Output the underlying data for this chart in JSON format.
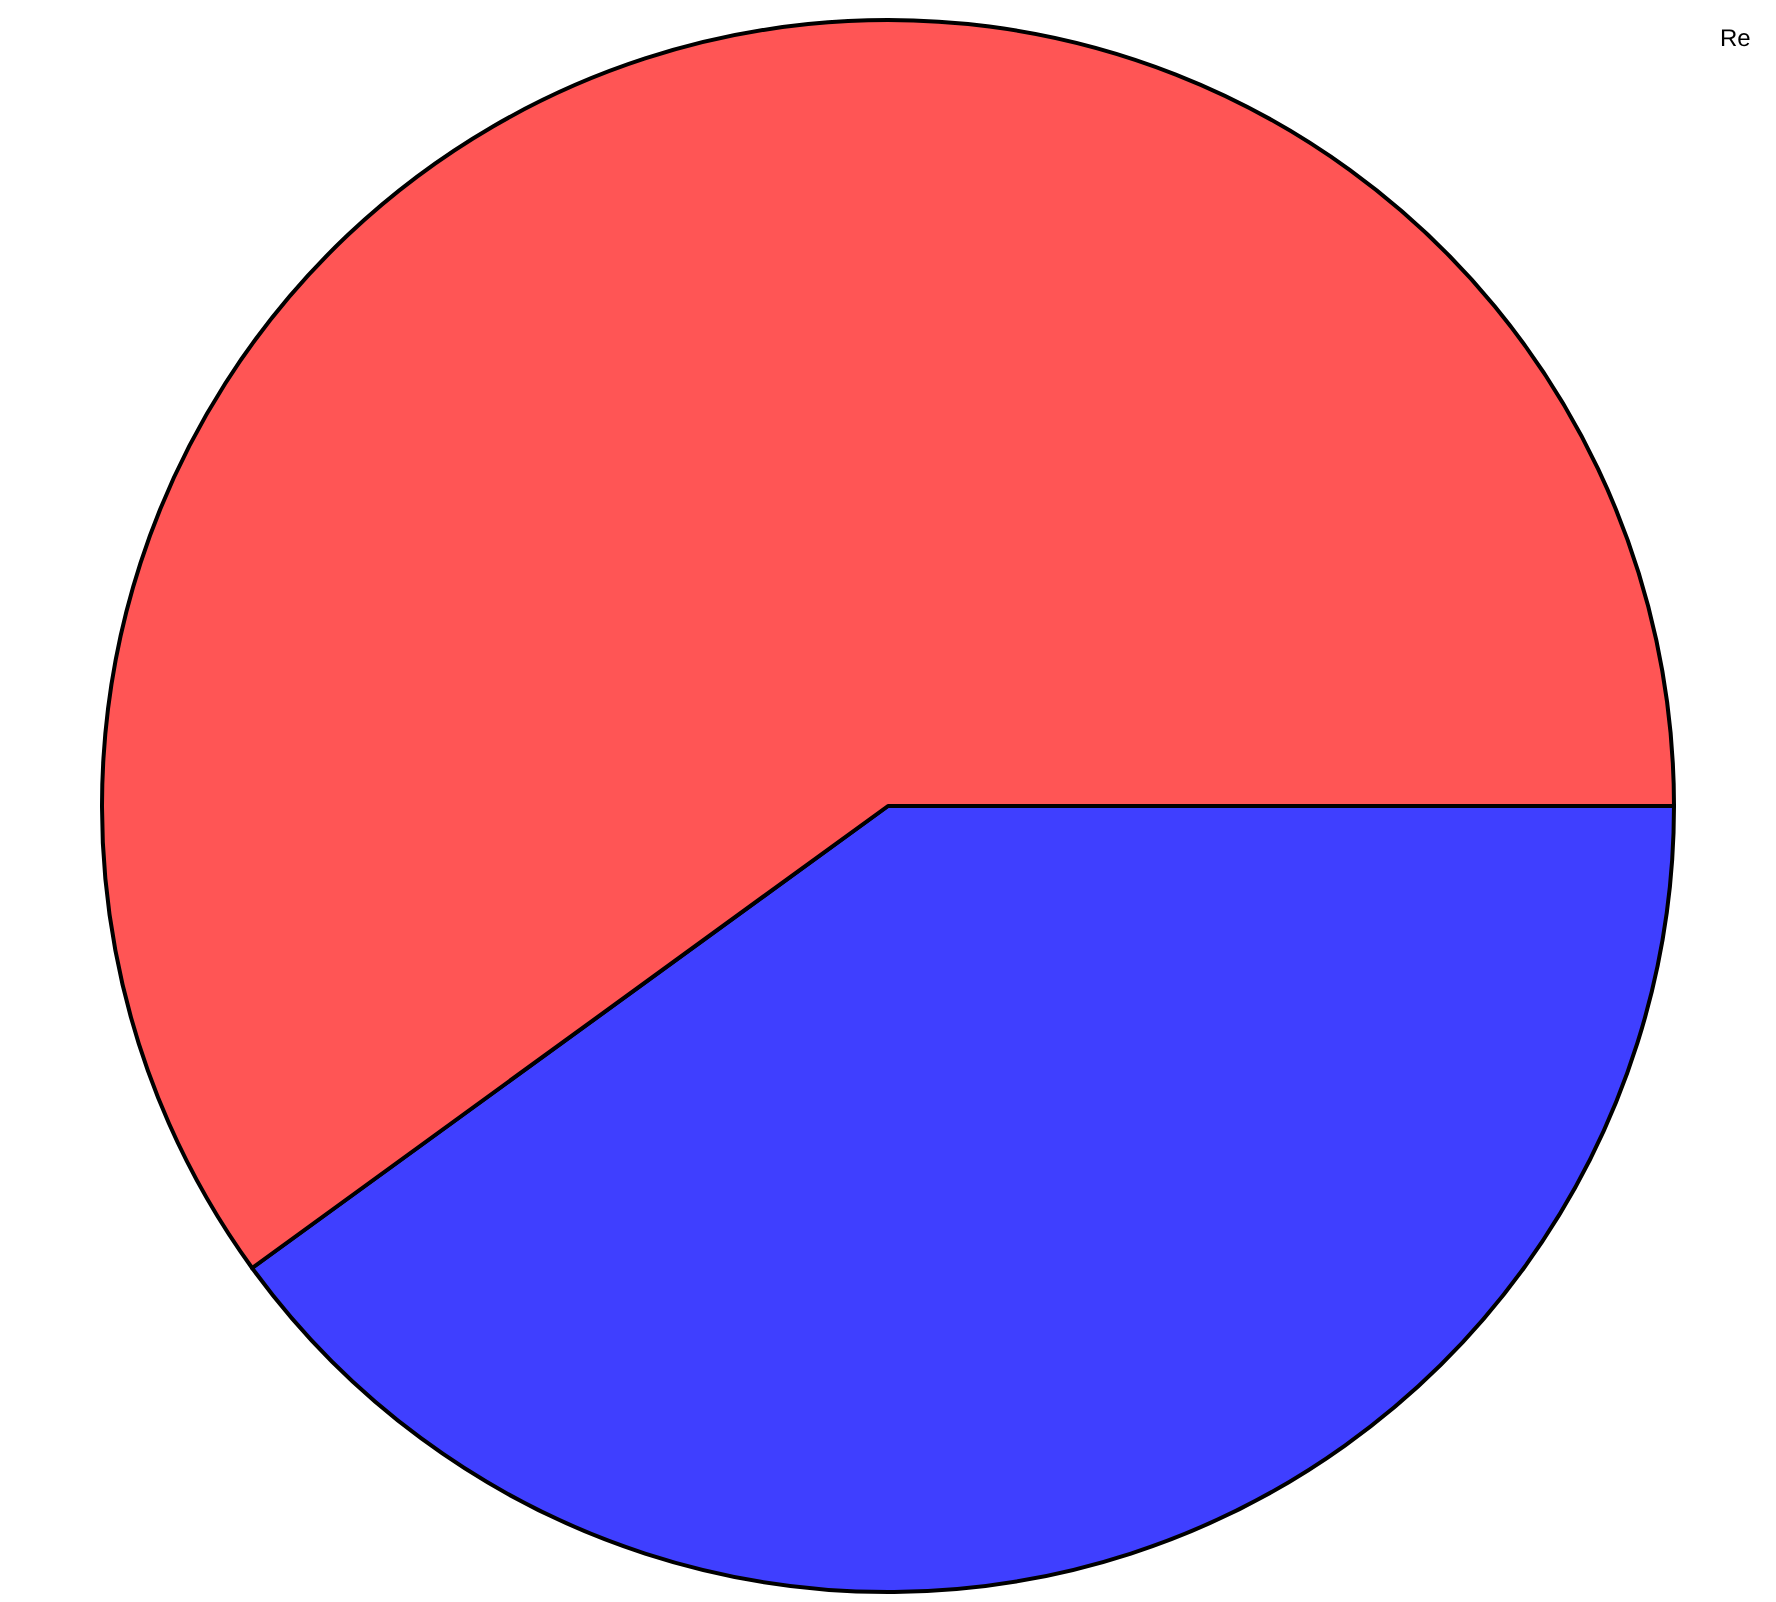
{
  "chart_data": {
    "type": "pie",
    "categories": [
      null,
      null
    ],
    "values": [
      40,
      60
    ],
    "colors": [
      "#3f3fff",
      "#ff5555"
    ],
    "annotations": [
      "Re"
    ],
    "legend": false
  }
}
